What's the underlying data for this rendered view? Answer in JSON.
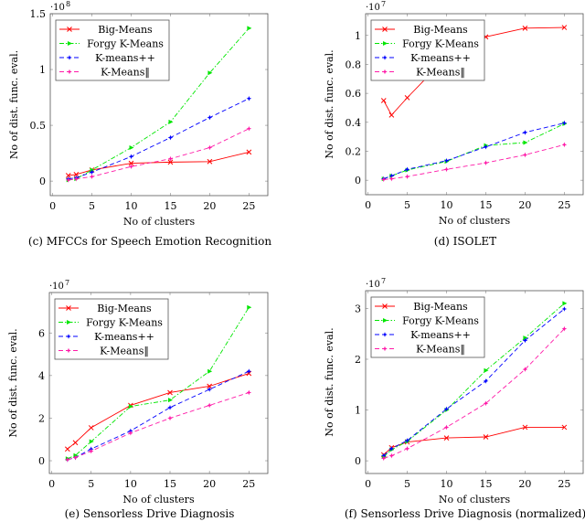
{
  "chart_data": [
    {
      "type": "line",
      "caption": "(c) MFCCs for Speech Emotion Recognition",
      "xlabel": "No of clusters",
      "ylabel": "No of dist. func. eval.",
      "y_multiplier": "·10",
      "y_exponent": "8",
      "xlim": [
        -0.3,
        27.4
      ],
      "ylim": [
        -0.13,
        1.5
      ],
      "xticks": [
        0,
        5,
        10,
        15,
        20,
        25
      ],
      "yticks": [
        0,
        0.5,
        1,
        1.5
      ],
      "ytick_labels": [
        "0",
        "0.5",
        "1",
        "1.5"
      ],
      "legend_position": "top-left",
      "x": [
        2,
        3,
        5,
        10,
        15,
        20,
        25
      ],
      "series": [
        {
          "name": "Big-Means",
          "values": [
            0.05,
            0.06,
            0.1,
            0.16,
            0.17,
            0.175,
            0.26
          ]
        },
        {
          "name": "Forgy K-Means",
          "values": [
            0.01,
            0.02,
            0.1,
            0.3,
            0.53,
            0.97,
            1.37
          ]
        },
        {
          "name": "K-means++",
          "values": [
            0.02,
            0.03,
            0.08,
            0.22,
            0.39,
            0.57,
            0.74
          ]
        },
        {
          "name": "K-Means‖",
          "values": [
            0.01,
            0.02,
            0.04,
            0.13,
            0.2,
            0.3,
            0.47
          ]
        }
      ]
    },
    {
      "type": "line",
      "caption": "(d) ISOLET",
      "xlabel": "No of clusters",
      "ylabel": "No of dist. func. eval.",
      "y_multiplier": "·10",
      "y_exponent": "7",
      "xlim": [
        -0.3,
        27.4
      ],
      "ylim": [
        -0.1,
        1.15
      ],
      "xticks": [
        0,
        5,
        10,
        15,
        20,
        25
      ],
      "yticks": [
        0,
        0.2,
        0.4,
        0.6,
        0.8,
        1
      ],
      "ytick_labels": [
        "0",
        "0.2",
        "0.4",
        "0.6",
        "0.8",
        "1"
      ],
      "legend_position": "top-left",
      "x": [
        2,
        3,
        5,
        10,
        15,
        20,
        25
      ],
      "series": [
        {
          "name": "Big-Means",
          "values": [
            0.55,
            0.45,
            0.57,
            0.85,
            0.99,
            1.05,
            1.055
          ]
        },
        {
          "name": "Forgy K-Means",
          "values": [
            0.01,
            0.03,
            0.07,
            0.13,
            0.24,
            0.26,
            0.39
          ]
        },
        {
          "name": "K-means++",
          "values": [
            0.01,
            0.03,
            0.075,
            0.135,
            0.23,
            0.33,
            0.395
          ]
        },
        {
          "name": "K-Means‖",
          "values": [
            0.005,
            0.01,
            0.025,
            0.075,
            0.12,
            0.175,
            0.245
          ]
        }
      ]
    },
    {
      "type": "line",
      "caption": "(e) Sensorless Drive Diagnosis",
      "xlabel": "No of clusters",
      "ylabel": "No of dist. func. eval.",
      "y_multiplier": "·10",
      "y_exponent": "7",
      "xlim": [
        -0.3,
        27.4
      ],
      "ylim": [
        -0.6,
        7.9
      ],
      "xticks": [
        0,
        5,
        10,
        15,
        20,
        25
      ],
      "yticks": [
        0,
        2,
        4,
        6
      ],
      "ytick_labels": [
        "0",
        "2",
        "4",
        "6"
      ],
      "legend_position": "top-left",
      "x": [
        2,
        3,
        5,
        10,
        15,
        20,
        25
      ],
      "series": [
        {
          "name": "Big-Means",
          "values": [
            0.55,
            0.85,
            1.55,
            2.6,
            3.2,
            3.5,
            4.1
          ]
        },
        {
          "name": "Forgy K-Means",
          "values": [
            0.1,
            0.25,
            0.9,
            2.55,
            2.85,
            4.2,
            7.2
          ]
        },
        {
          "name": "K-means++",
          "values": [
            0.05,
            0.15,
            0.55,
            1.4,
            2.5,
            3.35,
            4.2
          ]
        },
        {
          "name": "K-Means‖",
          "values": [
            0.05,
            0.15,
            0.45,
            1.3,
            2.0,
            2.6,
            3.2
          ]
        }
      ]
    },
    {
      "type": "line",
      "caption": "(f) Sensorless Drive Diagnosis (normalized)",
      "xlabel": "No of clusters",
      "ylabel": "No of dist. func. eval.",
      "y_multiplier": "·10",
      "y_exponent": "7",
      "xlim": [
        -0.3,
        27.4
      ],
      "ylim": [
        -0.25,
        3.35
      ],
      "xticks": [
        0,
        5,
        10,
        15,
        20,
        25
      ],
      "yticks": [
        0,
        1,
        2,
        3
      ],
      "ytick_labels": [
        "0",
        "1",
        "2",
        "3"
      ],
      "legend_position": "top-left",
      "x": [
        2,
        3,
        5,
        10,
        15,
        20,
        25
      ],
      "series": [
        {
          "name": "Big-Means",
          "values": [
            0.12,
            0.26,
            0.37,
            0.45,
            0.47,
            0.66,
            0.66
          ]
        },
        {
          "name": "Forgy K-Means",
          "values": [
            0.08,
            0.22,
            0.38,
            1.0,
            1.78,
            2.42,
            3.1
          ]
        },
        {
          "name": "K-means++",
          "values": [
            0.1,
            0.24,
            0.4,
            1.02,
            1.57,
            2.37,
            2.99
          ]
        },
        {
          "name": "K-Means‖",
          "values": [
            0.05,
            0.1,
            0.24,
            0.66,
            1.13,
            1.8,
            2.6
          ]
        }
      ]
    }
  ],
  "series_colors": [
    "#ff0000",
    "#00e600",
    "#0000ff",
    "#ff1aa8"
  ]
}
